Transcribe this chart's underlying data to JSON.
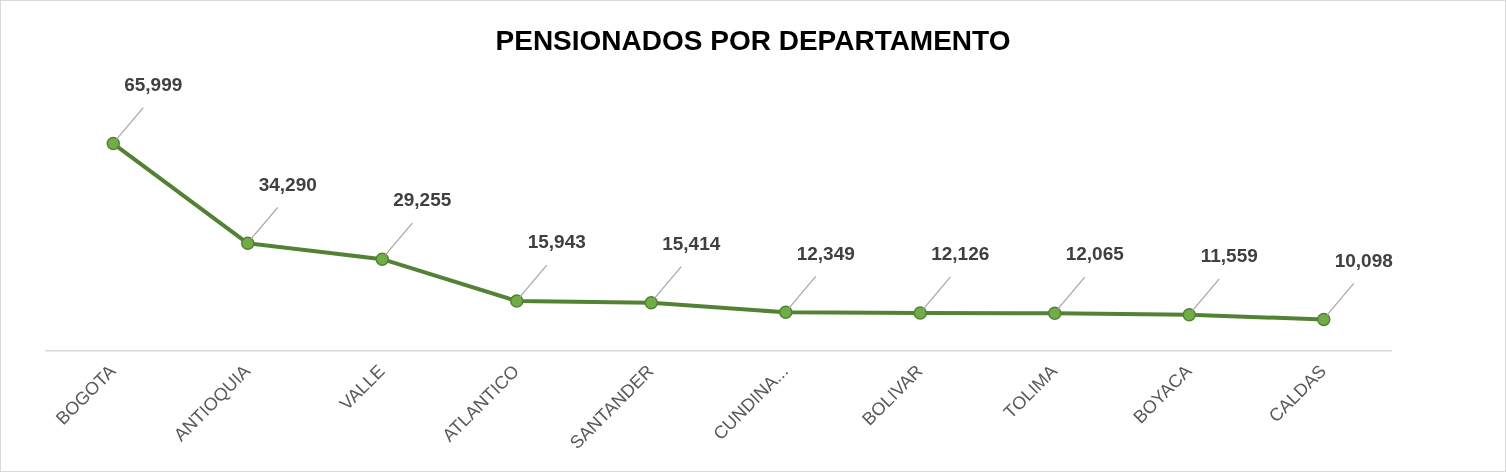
{
  "chart_data": {
    "type": "line",
    "title": "PENSIONADOS POR DEPARTAMENTO",
    "categories": [
      "BOGOTA",
      "ANTIOQUIA",
      "VALLE",
      "ATLANTICO",
      "SANTANDER",
      "CUNDINA...",
      "BOLIVAR",
      "TOLIMA",
      "BOYACA",
      "CALDAS"
    ],
    "series": [
      {
        "color": "#548235",
        "values": [
          65999,
          34290,
          29255,
          15943,
          15414,
          12349,
          12126,
          12065,
          11559,
          10098
        ],
        "value_labels": [
          "65,999",
          "34,290",
          "29,255",
          "15,943",
          "15,414",
          "12,349",
          "12,126",
          "12,065",
          "11,559",
          "10,098"
        ]
      }
    ],
    "grid": false,
    "legend": false,
    "marker": "circle",
    "line_style": "solid"
  }
}
